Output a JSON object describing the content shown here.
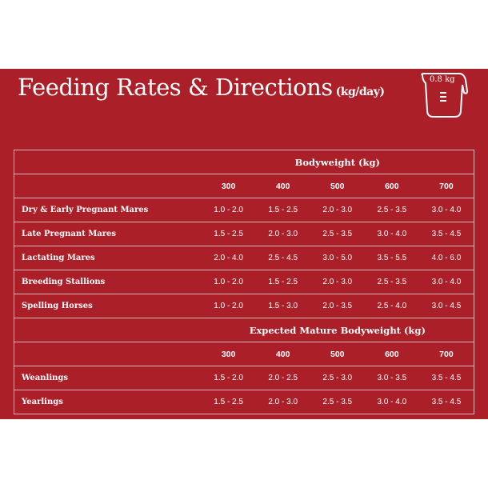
{
  "title": "Feeding Rates & Directions",
  "title_unit": "(kg/day)",
  "scoop": {
    "label": "0.8 kg",
    "icon": "measuring-jug-icon"
  },
  "colors": {
    "background": "#ab1f28",
    "text": "#ffffff"
  },
  "sections": [
    {
      "heading": "Bodyweight (kg)",
      "columns": [
        "300",
        "400",
        "500",
        "600",
        "700"
      ],
      "rows": [
        {
          "label": "Dry & Early Pregnant Mares",
          "values": [
            "1.0 - 2.0",
            "1.5 - 2.5",
            "2.0 - 3.0",
            "2.5 - 3.5",
            "3.0 - 4.0"
          ]
        },
        {
          "label": "Late Pregnant Mares",
          "values": [
            "1.5 - 2.5",
            "2.0 - 3.0",
            "2.5 - 3.5",
            "3.0 - 4.0",
            "3.5 - 4.5"
          ]
        },
        {
          "label": "Lactating Mares",
          "values": [
            "2.0 - 4.0",
            "2.5 - 4.5",
            "3.0 - 5.0",
            "3.5 - 5.5",
            "4.0 - 6.0"
          ]
        },
        {
          "label": "Breeding Stallions",
          "values": [
            "1.0 - 2.0",
            "1.5 - 2.5",
            "2.0 - 3.0",
            "2.5 - 3.5",
            "3.0 - 4.0"
          ]
        },
        {
          "label": "Spelling Horses",
          "values": [
            "1.0 - 2.0",
            "1.5 - 3.0",
            "2.0 - 3.5",
            "2.5 - 4.0",
            "3.0 - 4.5"
          ]
        }
      ]
    },
    {
      "heading": "Expected Mature Bodyweight (kg)",
      "columns": [
        "300",
        "400",
        "500",
        "600",
        "700"
      ],
      "rows": [
        {
          "label": "Weanlings",
          "values": [
            "1.5 - 2.0",
            "2.0 - 2.5",
            "2.5 - 3.0",
            "3.0 - 3.5",
            "3.5 - 4.5"
          ]
        },
        {
          "label": "Yearlings",
          "values": [
            "1.5 - 2.5",
            "2.0 - 3.0",
            "2.5 - 3.5",
            "3.0 - 4.0",
            "3.5 - 4.5"
          ]
        }
      ]
    }
  ]
}
